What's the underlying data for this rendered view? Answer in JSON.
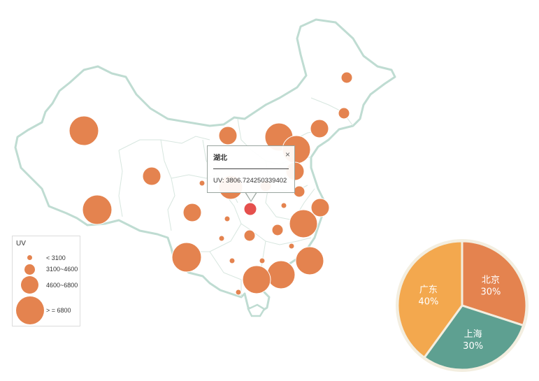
{
  "colors": {
    "outline": "#bfdcd2",
    "province_line": "#d7e6df",
    "bubble": "#e4834f",
    "bubble_selected": "#e5504d",
    "pie_beijing": "#e4834f",
    "pie_shanghai": "#5ea091",
    "pie_guangdong": "#f3a84e"
  },
  "legend": {
    "title": "UV",
    "items": [
      {
        "label": "< 3100",
        "size": "small"
      },
      {
        "label": "3100~4600",
        "size": "medium"
      },
      {
        "label": "4600~6800",
        "size": "large"
      },
      {
        "label": "> = 6800",
        "size": "xlarge"
      }
    ]
  },
  "tooltip": {
    "title": "湖北",
    "close_icon": "×",
    "value_text": "UV: 3806.724250339402"
  },
  "chart_data": {
    "type": "pie",
    "slices": [
      {
        "label": "北京",
        "percent_label": "30%",
        "value": 30
      },
      {
        "label": "上海",
        "percent_label": "30%",
        "value": 30
      },
      {
        "label": "广东",
        "percent_label": "40%",
        "value": 40
      }
    ]
  }
}
